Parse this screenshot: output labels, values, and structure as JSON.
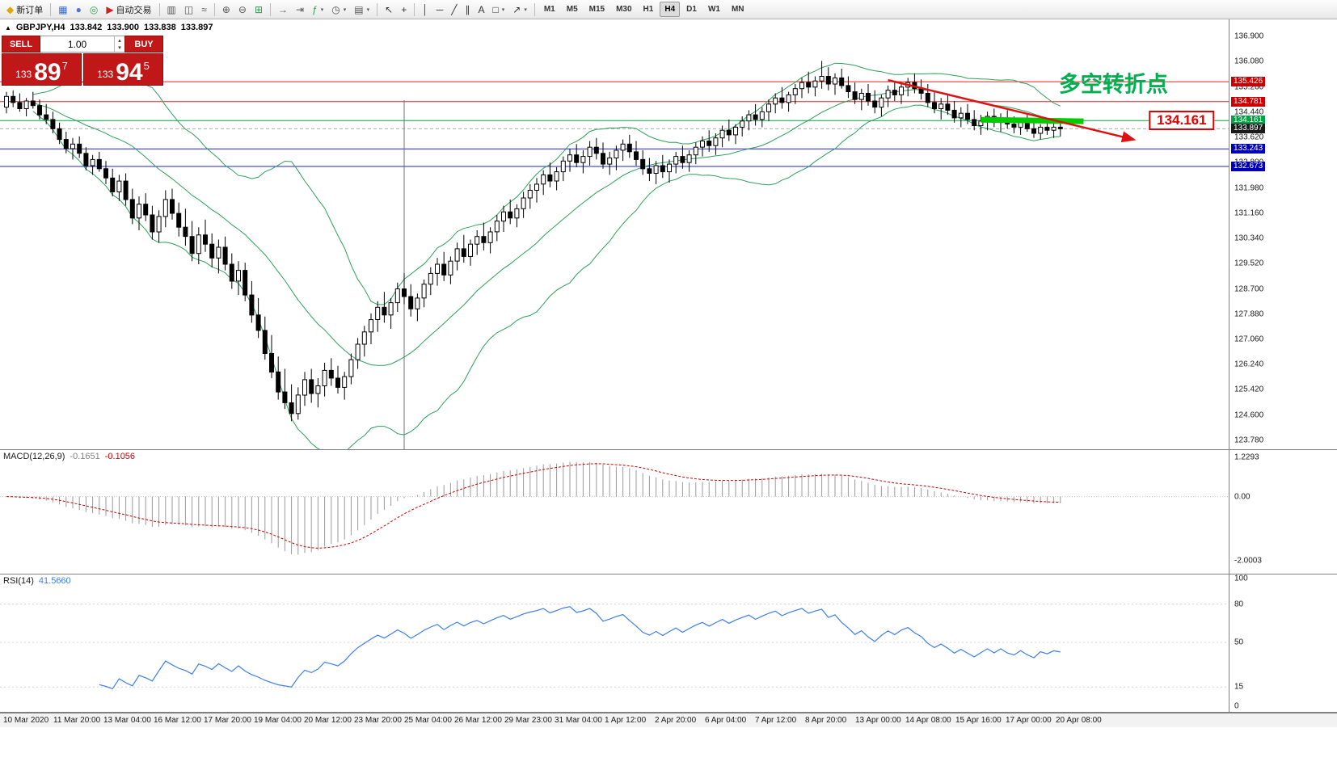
{
  "toolbar": {
    "items": [
      {
        "type": "button",
        "icon": "new-order-icon",
        "label": "新订单"
      },
      {
        "type": "separator"
      },
      {
        "type": "button",
        "icon": "new-chart-icon"
      },
      {
        "type": "button",
        "icon": "profiles-icon"
      },
      {
        "type": "button",
        "icon": "data-window-icon"
      },
      {
        "type": "button",
        "icon": "autotrading-icon",
        "label": "自动交易"
      },
      {
        "type": "separator"
      },
      {
        "type": "button",
        "icon": "bar-chart-icon"
      },
      {
        "type": "button",
        "icon": "candlestick-chart-icon"
      },
      {
        "type": "button",
        "icon": "line-chart-icon"
      },
      {
        "type": "separator"
      },
      {
        "type": "button",
        "icon": "zoom-in-icon"
      },
      {
        "type": "button",
        "icon": "zoom-out-icon"
      },
      {
        "type": "button",
        "icon": "tile-windows-icon"
      },
      {
        "type": "separator"
      },
      {
        "type": "button",
        "icon": "auto-scroll-icon"
      },
      {
        "type": "button",
        "icon": "chart-shift-icon"
      },
      {
        "type": "button",
        "icon": "indicators-icon",
        "dropdown": true
      },
      {
        "type": "button",
        "icon": "periods-icon",
        "dropdown": true
      },
      {
        "type": "button",
        "icon": "templates-icon",
        "dropdown": true
      },
      {
        "type": "separator"
      },
      {
        "type": "button",
        "icon": "cursor-icon"
      },
      {
        "type": "button",
        "icon": "crosshair-icon"
      },
      {
        "type": "separator"
      },
      {
        "type": "button",
        "icon": "vertical-line-icon"
      },
      {
        "type": "button",
        "icon": "horizontal-line-icon"
      },
      {
        "type": "button",
        "icon": "trendline-icon"
      },
      {
        "type": "button",
        "icon": "equidistant-channel-icon"
      },
      {
        "type": "button",
        "icon": "text-icon"
      },
      {
        "type": "button",
        "icon": "shapes-icon",
        "dropdown": true
      },
      {
        "type": "button",
        "icon": "arrows-icon",
        "dropdown": true
      },
      {
        "type": "separator"
      },
      {
        "type": "tf",
        "label": "M1"
      },
      {
        "type": "tf",
        "label": "M5"
      },
      {
        "type": "tf",
        "label": "M15"
      },
      {
        "type": "tf",
        "label": "M30"
      },
      {
        "type": "tf",
        "label": "H1"
      },
      {
        "type": "tf",
        "label": "H4",
        "active": true
      },
      {
        "type": "tf",
        "label": "D1"
      },
      {
        "type": "tf",
        "label": "W1"
      },
      {
        "type": "tf",
        "label": "MN"
      }
    ]
  },
  "quote_panel": {
    "collapse_icon": "▲",
    "symbol_period": "GBPJPY,H4",
    "open": "133.842",
    "high": "133.900",
    "low": "133.838",
    "close": "133.897",
    "sell_label": "SELL",
    "buy_label": "BUY",
    "volume": "1.00",
    "sell_price_small": "133",
    "sell_price_big": "89",
    "sell_price_sup": "7",
    "buy_price_small": "133",
    "buy_price_big": "94",
    "buy_price_sup": "5"
  },
  "indicator_panels": {
    "macd": {
      "name": "MACD(12,26,9)",
      "value_main": "-0.1651",
      "value_signal": "-0.1056"
    },
    "rsi": {
      "name": "RSI(14)",
      "value": "41.5660"
    }
  },
  "overlays": {
    "hlines": [
      {
        "price": 135.426,
        "label": "135.426",
        "color": "#e02020",
        "label_bg": "#cc0000"
      },
      {
        "price": 134.781,
        "label": "134.781",
        "color": "#e02020",
        "label_bg": "#cc0000"
      },
      {
        "price": 134.161,
        "label": "134.161",
        "color": "#00a344",
        "label_bg": "#00a344"
      },
      {
        "price": 133.243,
        "label": "133.243",
        "color": "#2222cc",
        "label_bg": "#0000bb"
      },
      {
        "price": 132.673,
        "label": "132.673",
        "color": "#2222cc",
        "label_bg": "#0000bb"
      }
    ],
    "current_price": {
      "price": 133.897,
      "label": "133.897",
      "label_bg": "#1a1a1a"
    },
    "trend_arrow": {
      "from_index": 133,
      "from_price": 135.48,
      "to_index": 170,
      "to_price": 133.55,
      "color": "#e01010"
    },
    "highlight_bar": {
      "from_index": 147,
      "from_price": 134.19,
      "to_index": 162.5,
      "to_price": 134.14,
      "color": "#00cc00"
    },
    "vertical_line": {
      "index": 60,
      "color": "#707070"
    },
    "annotation": {
      "text": "多空转折点",
      "color": "#00b050",
      "index": 167,
      "price": 135.4
    },
    "price_callout": {
      "text": "134.161",
      "color": "#e00000",
      "index": 177.3,
      "price": 134.16
    }
  },
  "price_axis": {
    "labels": [
      "136.900",
      "136.080",
      "135.260",
      "134.440",
      "133.620",
      "132.800",
      "131.980",
      "131.160",
      "130.340",
      "129.520",
      "128.700",
      "127.880",
      "127.060",
      "126.240",
      "125.420",
      "124.600",
      "123.780"
    ]
  },
  "macd_axis": {
    "labels": [
      {
        "text": "1.2293",
        "value": 1.2293
      },
      {
        "text": "0.00",
        "value": 0
      },
      {
        "text": "-2.0003",
        "value": -2.0003
      }
    ]
  },
  "rsi_axis": {
    "labels": [
      {
        "text": "100",
        "value": 100
      },
      {
        "text": "80",
        "value": 80
      },
      {
        "text": "50",
        "value": 50
      },
      {
        "text": "15",
        "value": 15
      },
      {
        "text": "0",
        "value": 0
      }
    ],
    "levels": [
      80,
      50,
      15
    ]
  },
  "time_axis": {
    "labels": [
      "10 Mar 2020",
      "11 Mar 20:00",
      "13 Mar 04:00",
      "16 Mar 12:00",
      "17 Mar 20:00",
      "19 Mar 04:00",
      "20 Mar 12:00",
      "23 Mar 20:00",
      "25 Mar 04:00",
      "26 Mar 12:00",
      "29 Mar 23:00",
      "31 Mar 04:00",
      "1 Apr 12:00",
      "2 Apr 20:00",
      "6 Apr 04:00",
      "7 Apr 12:00",
      "8 Apr 20:00",
      "13 Apr 00:00",
      "14 Apr 08:00",
      "15 Apr 16:00",
      "17 Apr 00:00",
      "20 Apr 08:00"
    ]
  },
  "chart_data": {
    "type": "candlestick",
    "symbol": "GBPJPY",
    "timeframe": "H4",
    "price_range": [
      123.49,
      137.45
    ],
    "indicators": [
      {
        "type": "bollinger_bands",
        "period": 20,
        "deviation": 2,
        "color": "#2da05a"
      },
      {
        "type": "macd",
        "fast": 12,
        "slow": 26,
        "signal": 9,
        "display_values": [
          -0.1651,
          -0.1056
        ],
        "axis_range": [
          -2.0003,
          1.2293
        ]
      },
      {
        "type": "rsi",
        "period": 14,
        "display_value": 41.566
      }
    ],
    "candles": [
      [
        134.6,
        135.1,
        134.4,
        134.95
      ],
      [
        134.95,
        135.15,
        134.6,
        134.75
      ],
      [
        134.75,
        135.05,
        134.45,
        134.55
      ],
      [
        134.55,
        134.9,
        134.3,
        134.8
      ],
      [
        134.8,
        135.1,
        134.55,
        134.65
      ],
      [
        134.65,
        134.85,
        134.2,
        134.35
      ],
      [
        134.35,
        134.7,
        134.05,
        134.2
      ],
      [
        134.2,
        134.45,
        133.75,
        133.9
      ],
      [
        133.9,
        134.1,
        133.4,
        133.55
      ],
      [
        133.55,
        133.8,
        133.1,
        133.25
      ],
      [
        133.25,
        133.6,
        132.9,
        133.4
      ],
      [
        133.4,
        133.65,
        132.95,
        133.1
      ],
      [
        133.1,
        133.3,
        132.55,
        132.7
      ],
      [
        132.7,
        133.05,
        132.4,
        132.9
      ],
      [
        132.9,
        133.15,
        132.5,
        132.6
      ],
      [
        132.6,
        132.85,
        132.1,
        132.3
      ],
      [
        132.3,
        132.6,
        131.7,
        131.85
      ],
      [
        131.85,
        132.4,
        131.55,
        132.2
      ],
      [
        132.2,
        132.45,
        131.4,
        131.6
      ],
      [
        131.6,
        131.95,
        130.8,
        131.0
      ],
      [
        131.0,
        131.7,
        130.6,
        131.45
      ],
      [
        131.45,
        131.8,
        130.9,
        131.1
      ],
      [
        131.1,
        131.4,
        130.3,
        130.55
      ],
      [
        130.55,
        131.25,
        130.2,
        131.05
      ],
      [
        131.05,
        131.9,
        130.7,
        131.6
      ],
      [
        131.6,
        131.95,
        130.95,
        131.15
      ],
      [
        131.15,
        131.5,
        130.4,
        130.7
      ],
      [
        130.7,
        131.3,
        130.1,
        130.4
      ],
      [
        130.4,
        130.9,
        129.6,
        129.85
      ],
      [
        129.85,
        130.7,
        129.5,
        130.45
      ],
      [
        130.45,
        130.95,
        129.9,
        130.15
      ],
      [
        130.15,
        130.5,
        129.4,
        129.7
      ],
      [
        129.7,
        130.3,
        129.2,
        130.05
      ],
      [
        130.05,
        130.4,
        129.3,
        129.5
      ],
      [
        129.5,
        129.85,
        128.7,
        128.95
      ],
      [
        128.95,
        129.6,
        128.5,
        129.3
      ],
      [
        129.3,
        129.55,
        128.3,
        128.5
      ],
      [
        128.5,
        128.95,
        127.6,
        127.85
      ],
      [
        127.85,
        128.4,
        127.1,
        127.35
      ],
      [
        127.35,
        127.8,
        126.4,
        126.6
      ],
      [
        126.6,
        127.2,
        125.8,
        126.0
      ],
      [
        126.0,
        126.5,
        125.1,
        125.35
      ],
      [
        125.35,
        126.1,
        124.8,
        125.0
      ],
      [
        125.0,
        125.6,
        124.4,
        124.65
      ],
      [
        124.65,
        125.5,
        124.45,
        125.25
      ],
      [
        125.25,
        126.0,
        124.9,
        125.75
      ],
      [
        125.75,
        126.1,
        125.0,
        125.3
      ],
      [
        125.3,
        125.8,
        124.85,
        125.55
      ],
      [
        125.55,
        126.3,
        125.2,
        126.05
      ],
      [
        126.05,
        126.45,
        125.55,
        125.8
      ],
      [
        125.8,
        126.2,
        125.3,
        125.5
      ],
      [
        125.5,
        126.0,
        125.1,
        125.85
      ],
      [
        125.85,
        126.6,
        125.6,
        126.4
      ],
      [
        126.4,
        127.1,
        126.1,
        126.9
      ],
      [
        126.9,
        127.5,
        126.5,
        127.3
      ],
      [
        127.3,
        127.9,
        126.9,
        127.7
      ],
      [
        127.7,
        128.3,
        127.3,
        128.1
      ],
      [
        128.1,
        128.6,
        127.6,
        127.85
      ],
      [
        127.85,
        128.4,
        127.4,
        128.25
      ],
      [
        128.25,
        128.9,
        127.95,
        128.7
      ],
      [
        128.7,
        129.2,
        128.2,
        128.45
      ],
      [
        128.45,
        128.85,
        127.8,
        128.05
      ],
      [
        128.05,
        128.55,
        127.65,
        128.4
      ],
      [
        128.4,
        129.0,
        128.1,
        128.85
      ],
      [
        128.85,
        129.4,
        128.5,
        129.2
      ],
      [
        129.2,
        129.7,
        128.8,
        129.5
      ],
      [
        129.5,
        129.9,
        128.95,
        129.15
      ],
      [
        129.15,
        129.75,
        128.85,
        129.6
      ],
      [
        129.6,
        130.2,
        129.3,
        130.0
      ],
      [
        130.0,
        130.45,
        129.55,
        129.75
      ],
      [
        129.75,
        130.3,
        129.45,
        130.15
      ],
      [
        130.15,
        130.6,
        129.8,
        130.4
      ],
      [
        130.4,
        130.85,
        129.95,
        130.2
      ],
      [
        130.2,
        130.7,
        129.85,
        130.55
      ],
      [
        130.55,
        131.1,
        130.25,
        130.9
      ],
      [
        130.9,
        131.4,
        130.55,
        131.2
      ],
      [
        131.2,
        131.6,
        130.8,
        131.0
      ],
      [
        131.0,
        131.45,
        130.7,
        131.3
      ],
      [
        131.3,
        131.85,
        131.0,
        131.65
      ],
      [
        131.65,
        132.1,
        131.3,
        131.9
      ],
      [
        131.9,
        132.3,
        131.5,
        132.1
      ],
      [
        132.1,
        132.55,
        131.75,
        132.4
      ],
      [
        132.4,
        132.8,
        132.0,
        132.2
      ],
      [
        132.2,
        132.65,
        131.9,
        132.5
      ],
      [
        132.5,
        133.0,
        132.2,
        132.85
      ],
      [
        132.85,
        133.25,
        132.5,
        133.05
      ],
      [
        133.05,
        133.4,
        132.65,
        132.8
      ],
      [
        132.8,
        133.2,
        132.45,
        133.0
      ],
      [
        133.0,
        133.5,
        132.7,
        133.3
      ],
      [
        133.3,
        133.6,
        132.9,
        133.1
      ],
      [
        133.1,
        133.45,
        132.6,
        132.75
      ],
      [
        132.75,
        133.15,
        132.4,
        132.95
      ],
      [
        132.95,
        133.35,
        132.55,
        133.2
      ],
      [
        133.2,
        133.55,
        132.85,
        133.4
      ],
      [
        133.4,
        133.7,
        132.95,
        133.15
      ],
      [
        133.15,
        133.5,
        132.7,
        132.9
      ],
      [
        132.9,
        133.2,
        132.4,
        132.6
      ],
      [
        132.6,
        132.95,
        132.2,
        132.45
      ],
      [
        132.45,
        132.85,
        132.1,
        132.7
      ],
      [
        132.7,
        133.05,
        132.3,
        132.5
      ],
      [
        132.5,
        132.9,
        132.15,
        132.75
      ],
      [
        132.75,
        133.15,
        132.45,
        133.0
      ],
      [
        133.0,
        133.35,
        132.6,
        132.8
      ],
      [
        132.8,
        133.2,
        132.5,
        133.05
      ],
      [
        133.05,
        133.45,
        132.75,
        133.3
      ],
      [
        133.3,
        133.65,
        133.0,
        133.5
      ],
      [
        133.5,
        133.85,
        133.15,
        133.35
      ],
      [
        133.35,
        133.75,
        133.05,
        133.6
      ],
      [
        133.6,
        134.0,
        133.3,
        133.85
      ],
      [
        133.85,
        134.2,
        133.5,
        133.7
      ],
      [
        133.7,
        134.05,
        133.4,
        133.95
      ],
      [
        133.95,
        134.3,
        133.65,
        134.15
      ],
      [
        134.15,
        134.5,
        133.85,
        134.35
      ],
      [
        134.35,
        134.7,
        134.0,
        134.2
      ],
      [
        134.2,
        134.6,
        133.95,
        134.45
      ],
      [
        134.45,
        134.85,
        134.15,
        134.7
      ],
      [
        134.7,
        135.05,
        134.4,
        134.9
      ],
      [
        134.9,
        135.25,
        134.55,
        134.75
      ],
      [
        134.75,
        135.1,
        134.45,
        135.0
      ],
      [
        135.0,
        135.35,
        134.7,
        135.2
      ],
      [
        135.2,
        135.55,
        134.9,
        135.4
      ],
      [
        135.4,
        135.75,
        135.05,
        135.25
      ],
      [
        135.25,
        135.6,
        134.95,
        135.45
      ],
      [
        135.45,
        136.1,
        135.2,
        135.6
      ],
      [
        135.6,
        135.9,
        135.15,
        135.35
      ],
      [
        135.35,
        135.7,
        135.0,
        135.55
      ],
      [
        135.55,
        135.85,
        135.2,
        135.3
      ],
      [
        135.3,
        135.6,
        134.9,
        135.1
      ],
      [
        135.1,
        135.4,
        134.7,
        134.85
      ],
      [
        134.85,
        135.2,
        134.5,
        135.05
      ],
      [
        135.05,
        135.35,
        134.65,
        134.8
      ],
      [
        134.8,
        135.15,
        134.4,
        134.6
      ],
      [
        134.6,
        135.0,
        134.3,
        134.9
      ],
      [
        134.9,
        135.3,
        134.6,
        135.15
      ],
      [
        135.15,
        135.45,
        134.8,
        135.0
      ],
      [
        135.0,
        135.4,
        134.7,
        135.25
      ],
      [
        135.25,
        135.55,
        134.95,
        135.4
      ],
      [
        135.4,
        135.7,
        135.05,
        135.2
      ],
      [
        135.2,
        135.5,
        134.85,
        135.05
      ],
      [
        135.05,
        135.35,
        134.6,
        134.75
      ],
      [
        134.75,
        135.1,
        134.4,
        134.55
      ],
      [
        134.55,
        134.9,
        134.2,
        134.7
      ],
      [
        134.7,
        135.0,
        134.35,
        134.5
      ],
      [
        134.5,
        134.8,
        134.1,
        134.25
      ],
      [
        134.25,
        134.6,
        133.95,
        134.4
      ],
      [
        134.4,
        134.7,
        134.05,
        134.2
      ],
      [
        134.2,
        134.5,
        133.85,
        134.0
      ],
      [
        134.0,
        134.35,
        133.7,
        134.15
      ],
      [
        134.15,
        134.45,
        133.85,
        134.3
      ],
      [
        134.3,
        134.55,
        133.95,
        134.1
      ],
      [
        134.1,
        134.4,
        133.8,
        134.25
      ],
      [
        134.25,
        134.5,
        133.9,
        134.05
      ],
      [
        134.05,
        134.3,
        133.75,
        133.95
      ],
      [
        133.95,
        134.25,
        133.7,
        134.1
      ],
      [
        134.1,
        134.35,
        133.8,
        133.9
      ],
      [
        133.9,
        134.15,
        133.6,
        133.75
      ],
      [
        133.75,
        134.05,
        133.55,
        133.95
      ],
      [
        133.95,
        134.2,
        133.7,
        133.85
      ],
      [
        133.85,
        134.1,
        133.6,
        133.95
      ],
      [
        133.95,
        134.1,
        133.65,
        133.9
      ]
    ]
  }
}
